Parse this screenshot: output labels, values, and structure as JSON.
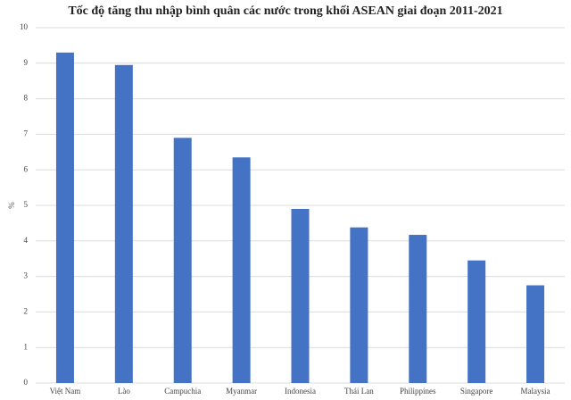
{
  "chart_data": {
    "type": "bar",
    "title": "Tốc độ tăng thu nhập bình quân các nước trong khối ASEAN giai đoạn 2011-2021",
    "y_label": "%",
    "categories": [
      "Việt Nam",
      "Lào",
      "Campuchia",
      "Myanmar",
      "Indonesia",
      "Thái Lan",
      "Philippines",
      "Singapore",
      "Malaysia"
    ],
    "values": [
      9.3,
      8.95,
      6.9,
      6.35,
      4.9,
      4.38,
      4.17,
      3.45,
      2.75
    ],
    "color": "#4472c4",
    "ylim": [
      0,
      10
    ],
    "yticks": [
      0,
      1,
      2,
      3,
      4,
      5,
      6,
      7,
      8,
      9,
      10
    ],
    "grid": true
  }
}
